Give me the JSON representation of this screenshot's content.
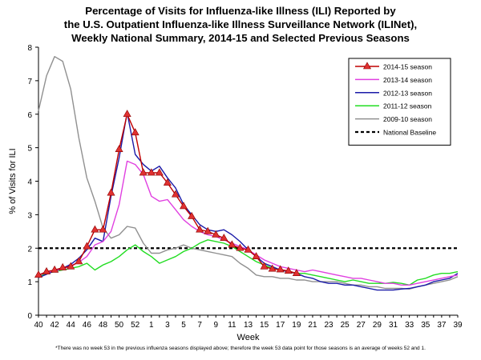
{
  "chart_data": {
    "type": "line",
    "title_lines": [
      "Percentage of Visits for Influenza-like Illness (ILI) Reported by",
      "the U.S. Outpatient Influenza-like Illness Surveillance Network (ILINet),",
      "Weekly National Summary, 2014-15 and Selected Previous Seasons"
    ],
    "xlabel": "Week",
    "ylabel": "% of Visits for ILI",
    "ylim": [
      0,
      8
    ],
    "yticks": [
      "0",
      "1",
      "2",
      "3",
      "4",
      "5",
      "6",
      "7",
      "8"
    ],
    "x_tick_labels": [
      "40",
      "42",
      "44",
      "46",
      "48",
      "50",
      "52",
      "1",
      "3",
      "5",
      "7",
      "9",
      "11",
      "13",
      "15",
      "17",
      "19",
      "21",
      "23",
      "25",
      "27",
      "29",
      "31",
      "33",
      "35",
      "37",
      "39"
    ],
    "weeks": [
      "40",
      "41",
      "42",
      "43",
      "44",
      "45",
      "46",
      "47",
      "48",
      "49",
      "50",
      "51",
      "52",
      "53",
      "1",
      "2",
      "3",
      "4",
      "5",
      "6",
      "7",
      "8",
      "9",
      "10",
      "11",
      "12",
      "13",
      "14",
      "15",
      "16",
      "17",
      "18",
      "19",
      "20",
      "21",
      "22",
      "23",
      "24",
      "25",
      "26",
      "27",
      "28",
      "29",
      "30",
      "31",
      "32",
      "33",
      "34",
      "35",
      "36",
      "37",
      "38",
      "39"
    ],
    "baseline": {
      "name": "National Baseline",
      "value": 2.0,
      "color": "#000000"
    },
    "series": [
      {
        "name": "2014-15 season",
        "color": "#c00000",
        "marker": "triangle",
        "marker_color": "#e03030",
        "values": [
          1.2,
          1.3,
          1.35,
          1.42,
          1.45,
          1.6,
          2.05,
          2.55,
          2.55,
          3.65,
          4.95,
          6.0,
          5.45,
          4.25,
          4.25,
          4.25,
          3.95,
          3.6,
          3.25,
          2.95,
          2.55,
          2.5,
          2.4,
          2.3,
          2.1,
          2.0,
          1.95,
          1.75,
          1.45,
          1.38,
          1.36,
          1.32,
          1.25
        ]
      },
      {
        "name": "2013-14 season",
        "color": "#e040e0",
        "values": [
          1.18,
          1.28,
          1.32,
          1.37,
          1.48,
          1.58,
          1.75,
          2.1,
          2.2,
          2.5,
          3.3,
          4.6,
          4.5,
          4.2,
          3.55,
          3.4,
          3.45,
          3.15,
          2.85,
          2.65,
          2.5,
          2.4,
          2.35,
          2.25,
          2.15,
          2.05,
          1.95,
          1.8,
          1.65,
          1.55,
          1.45,
          1.4,
          1.35,
          1.3,
          1.35,
          1.3,
          1.25,
          1.2,
          1.15,
          1.1,
          1.1,
          1.05,
          1.0,
          0.95,
          0.95,
          0.9,
          0.9,
          0.95,
          1.0,
          1.05,
          1.1,
          1.15,
          1.2
        ]
      },
      {
        "name": "2012-13 season",
        "color": "#1a1aa8",
        "values": [
          1.12,
          1.22,
          1.32,
          1.4,
          1.52,
          1.7,
          1.95,
          2.3,
          2.2,
          3.55,
          4.7,
          6.05,
          4.8,
          4.5,
          4.3,
          4.45,
          4.1,
          3.8,
          3.3,
          3.0,
          2.7,
          2.55,
          2.5,
          2.55,
          2.4,
          2.2,
          1.95,
          1.75,
          1.55,
          1.45,
          1.35,
          1.3,
          1.25,
          1.15,
          1.1,
          1.0,
          0.95,
          0.95,
          0.9,
          0.9,
          0.85,
          0.8,
          0.75,
          0.75,
          0.75,
          0.78,
          0.8,
          0.85,
          0.9,
          1.0,
          1.05,
          1.1,
          1.25
        ]
      },
      {
        "name": "2011-12 season",
        "color": "#22dd22",
        "values": [
          1.15,
          1.25,
          1.3,
          1.35,
          1.4,
          1.45,
          1.55,
          1.35,
          1.5,
          1.6,
          1.75,
          1.95,
          2.1,
          1.9,
          1.75,
          1.55,
          1.65,
          1.75,
          1.9,
          2.0,
          2.15,
          2.25,
          2.2,
          2.15,
          2.05,
          1.9,
          1.75,
          1.6,
          1.5,
          1.4,
          1.35,
          1.3,
          1.25,
          1.25,
          1.2,
          1.15,
          1.1,
          1.05,
          1.0,
          1.05,
          1.0,
          0.95,
          0.95,
          0.95,
          0.98,
          0.95,
          0.9,
          1.05,
          1.1,
          1.2,
          1.25,
          1.25,
          1.3
        ]
      },
      {
        "name": "2009-10 season",
        "color": "#909090",
        "values": [
          6.1,
          7.15,
          7.72,
          7.58,
          6.75,
          5.3,
          4.1,
          3.4,
          2.6,
          2.3,
          2.4,
          2.65,
          2.6,
          2.15,
          1.85,
          1.85,
          1.95,
          2.0,
          2.1,
          2.0,
          1.95,
          1.9,
          1.85,
          1.8,
          1.75,
          1.55,
          1.4,
          1.2,
          1.15,
          1.15,
          1.1,
          1.1,
          1.05,
          1.05,
          1.0,
          1.0,
          1.0,
          1.0,
          0.95,
          0.9,
          0.9,
          0.85,
          0.85,
          0.8,
          0.8,
          0.8,
          0.78,
          0.85,
          0.9,
          0.95,
          1.0,
          1.05,
          1.15
        ]
      }
    ],
    "legend_position": "top-right",
    "grid": false
  },
  "footnote": "*There was no week 53 in the previous influenza seasons displayed above; therefore the week 53 data point for those seasons is an average of weeks 52 and 1."
}
